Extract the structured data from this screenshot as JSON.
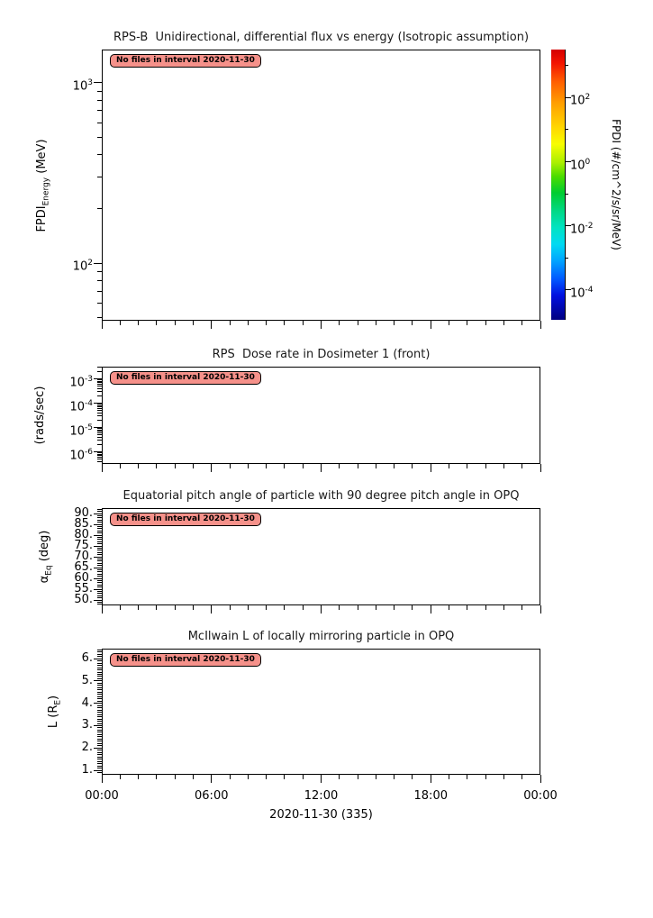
{
  "figure": {
    "background": "#ffffff",
    "no_files_bg": "#f5918a",
    "xaxis": {
      "tick_labels": [
        "00:00",
        "06:00",
        "12:00",
        "18:00",
        "00:00"
      ],
      "title": "2020-11-30 (335)",
      "range_hours": 24,
      "major_step_hours": 6,
      "minor_step_hours": 1
    }
  },
  "chart_data": [
    {
      "type": "heatmap",
      "title": "RPS-B  Unidirectional, differential flux vs energy (Isotropic assumption)",
      "ylabel": "FPDI_Energy (MeV)",
      "ylabel_parts": {
        "pre": "FPDI",
        "sub": "Energy",
        "post": " (MeV)"
      },
      "yscale": "log",
      "ylim": [
        48,
        1530
      ],
      "ymajor": [
        {
          "v": 1000,
          "exp": "3"
        },
        {
          "v": 100,
          "exp": "2"
        }
      ],
      "xlabel": "",
      "series": [],
      "annotation": "No files in interval 2020-11-30",
      "colorbar": {
        "label": "FPDI (#/cm^2/s/sr/MeV)",
        "scale": "log",
        "max_exp": 3.5,
        "min_exp": -4.93,
        "major": [
          {
            "exp": "2"
          },
          {
            "exp": "0"
          },
          {
            "exp": "-2"
          },
          {
            "exp": "-4"
          }
        ],
        "minor_exps": [
          3,
          1,
          -1,
          -3
        ],
        "gradient": [
          {
            "pos": 0.0,
            "color": "#d40000"
          },
          {
            "pos": 0.05,
            "color": "#f31500"
          },
          {
            "pos": 0.12,
            "color": "#ff6000"
          },
          {
            "pos": 0.2,
            "color": "#ffa000"
          },
          {
            "pos": 0.29,
            "color": "#ffd800"
          },
          {
            "pos": 0.35,
            "color": "#f8fd00"
          },
          {
            "pos": 0.42,
            "color": "#a8ef00"
          },
          {
            "pos": 0.47,
            "color": "#4bdc00"
          },
          {
            "pos": 0.53,
            "color": "#00cd30"
          },
          {
            "pos": 0.6,
            "color": "#00d988"
          },
          {
            "pos": 0.66,
            "color": "#00e3c3"
          },
          {
            "pos": 0.72,
            "color": "#00daf2"
          },
          {
            "pos": 0.78,
            "color": "#00a6ff"
          },
          {
            "pos": 0.85,
            "color": "#0058ff"
          },
          {
            "pos": 0.91,
            "color": "#0010e0"
          },
          {
            "pos": 1.0,
            "color": "#000080"
          }
        ]
      }
    },
    {
      "type": "line",
      "title": "RPS  Dose rate in Dosimeter 1 (front)",
      "ylabel": "(rads/sec)",
      "ylabel_parts": {
        "pre": "(rads/sec)",
        "sub": "",
        "post": ""
      },
      "yscale": "log",
      "ylim": [
        3.2e-07,
        0.0032
      ],
      "ymajor": [
        {
          "v": 0.001,
          "exp": "-3"
        },
        {
          "v": 0.0001,
          "exp": "-4"
        },
        {
          "v": 1e-05,
          "exp": "-5"
        },
        {
          "v": 1e-06,
          "exp": "-6"
        }
      ],
      "xlabel": "",
      "series": [],
      "annotation": "No files in interval 2020-11-30"
    },
    {
      "type": "line",
      "title": "Equatorial pitch angle of particle with 90 degree pitch angle in OPQ",
      "ylabel": "αEq (deg)",
      "ylabel_parts": {
        "pre": "α",
        "sub": "Eq",
        "post": " (deg)"
      },
      "yscale": "linear",
      "ylim": [
        47.5,
        92.5
      ],
      "yminor_step": 1,
      "ymajor": [
        {
          "v": 90,
          "label": "90."
        },
        {
          "v": 85,
          "label": "85."
        },
        {
          "v": 80,
          "label": "80."
        },
        {
          "v": 75,
          "label": "75."
        },
        {
          "v": 70,
          "label": "70."
        },
        {
          "v": 65,
          "label": "65."
        },
        {
          "v": 60,
          "label": "60."
        },
        {
          "v": 55,
          "label": "55."
        },
        {
          "v": 50,
          "label": "50."
        }
      ],
      "xlabel": "",
      "series": [],
      "annotation": "No files in interval 2020-11-30"
    },
    {
      "type": "line",
      "title": "McIlwain L of locally mirroring particle in OPQ",
      "ylabel": "L (RE)",
      "ylabel_parts": {
        "pre": "L (R",
        "sub": "E",
        "post": ")"
      },
      "yscale": "linear",
      "ylim": [
        0.8,
        6.45
      ],
      "yminor_step": 0.1,
      "ymajor": [
        {
          "v": 6,
          "label": "6."
        },
        {
          "v": 5,
          "label": "5."
        },
        {
          "v": 4,
          "label": "4."
        },
        {
          "v": 3,
          "label": "3."
        },
        {
          "v": 2,
          "label": "2."
        },
        {
          "v": 1,
          "label": "1."
        }
      ],
      "xlabel": "",
      "series": [],
      "annotation": "No files in interval 2020-11-30"
    }
  ]
}
